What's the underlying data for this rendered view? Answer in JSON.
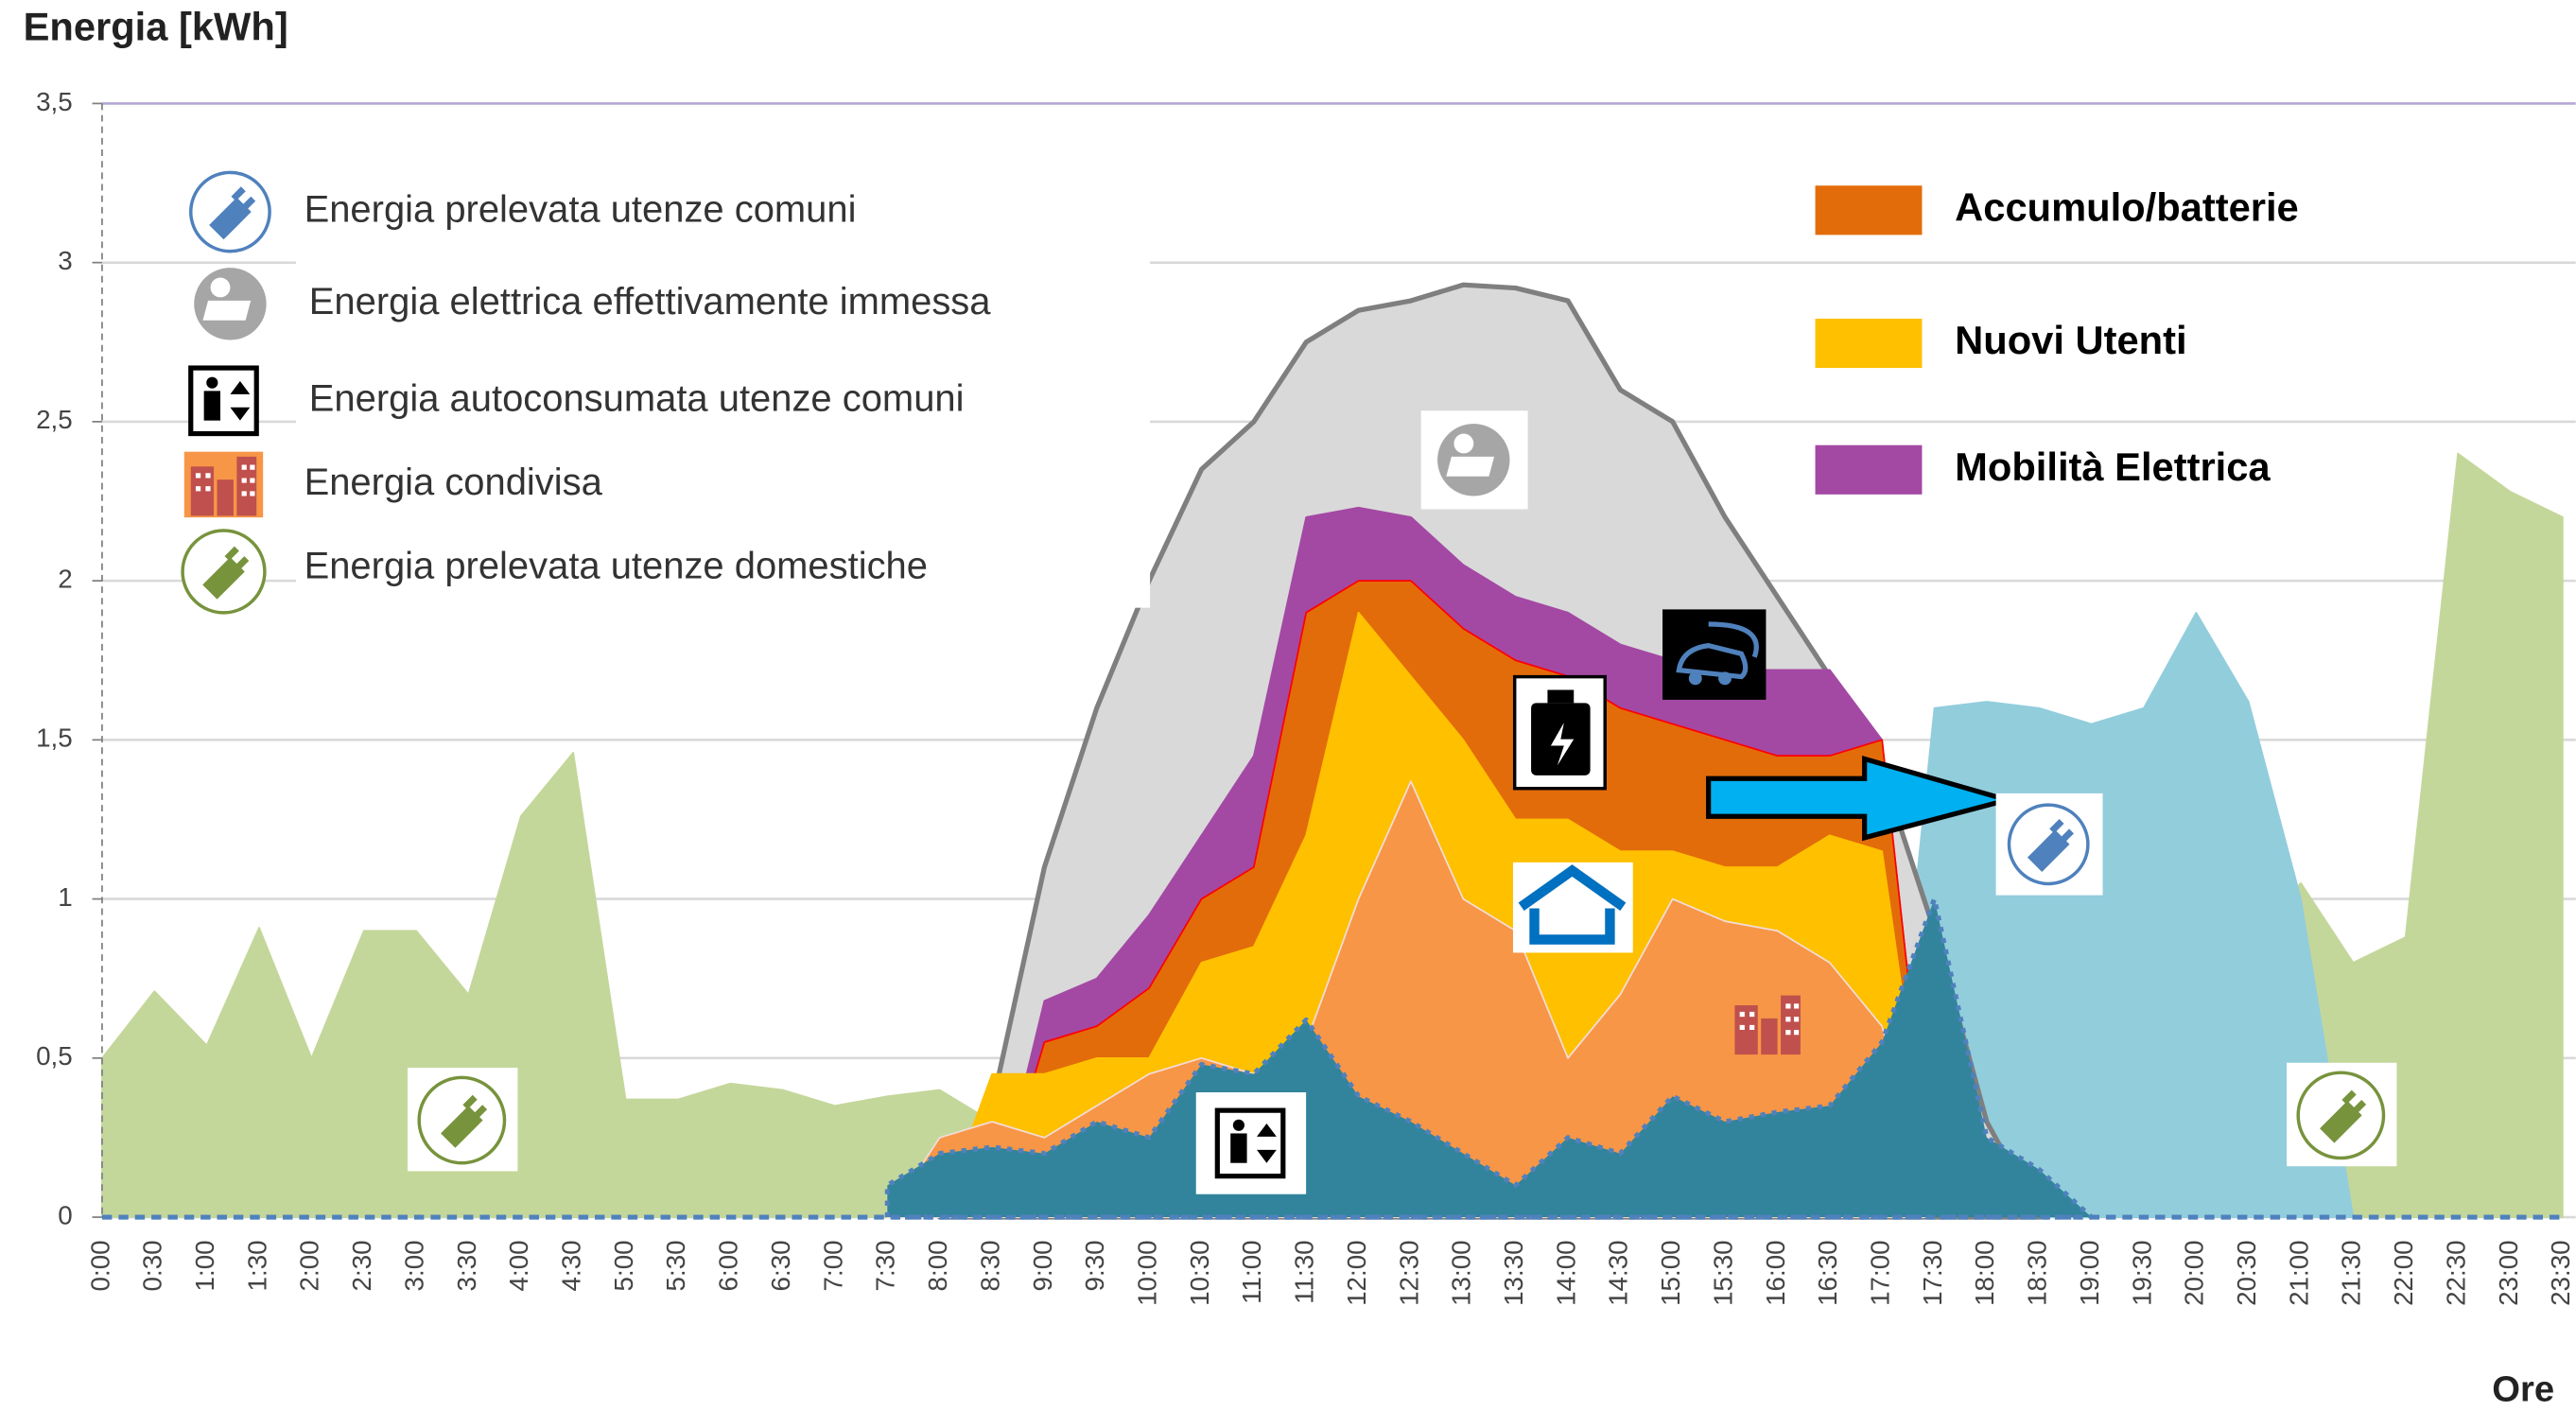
{
  "chart_data": {
    "type": "area",
    "title": "Energia [kWh]",
    "x_label": "Ore",
    "categories": [
      "0:00",
      "0:30",
      "1:00",
      "1:30",
      "2:00",
      "2:30",
      "3:00",
      "3:30",
      "4:00",
      "4:30",
      "5:00",
      "5:30",
      "6:00",
      "6:30",
      "7:00",
      "7:30",
      "8:00",
      "8:30",
      "9:00",
      "9:30",
      "10:00",
      "10:30",
      "11:00",
      "11:30",
      "12:00",
      "12:30",
      "13:00",
      "13:30",
      "14:00",
      "14:30",
      "15:00",
      "15:30",
      "16:00",
      "16:30",
      "17:00",
      "17:30",
      "18:00",
      "18:30",
      "19:00",
      "19:30",
      "20:00",
      "20:30",
      "21:00",
      "21:30",
      "22:00",
      "22:30",
      "23:00",
      "23:30"
    ],
    "ylim": [
      0,
      3.5
    ],
    "yticks": [
      0,
      {
        "value": 0.5,
        "label": "0,5"
      },
      1,
      {
        "value": 1.5,
        "label": "1,5"
      },
      2,
      {
        "value": 2.5,
        "label": "2,5"
      },
      3,
      {
        "value": 3.5,
        "label": "3,5"
      }
    ],
    "grid": true,
    "series": [
      {
        "name": "Energia prelevata utenze comuni",
        "color": "#92cddc",
        "values": [
          null,
          null,
          null,
          null,
          null,
          null,
          null,
          null,
          null,
          null,
          null,
          null,
          null,
          null,
          null,
          null,
          null,
          null,
          null,
          null,
          null,
          null,
          null,
          null,
          null,
          null,
          null,
          null,
          null,
          null,
          null,
          null,
          null,
          null,
          0,
          1.6,
          1.62,
          1.6,
          1.55,
          1.6,
          1.9,
          1.62,
          1.0,
          0,
          null,
          null,
          null,
          null
        ]
      },
      {
        "name": "Energia elettrica effettivamente immessa",
        "color": "#d9d9d9",
        "values": [
          null,
          null,
          null,
          null,
          null,
          null,
          null,
          null,
          null,
          null,
          null,
          null,
          null,
          null,
          null,
          null,
          0,
          0.35,
          1.1,
          1.6,
          2.0,
          2.35,
          2.5,
          2.75,
          2.85,
          2.88,
          2.93,
          2.92,
          2.88,
          2.6,
          2.5,
          2.2,
          1.95,
          1.7,
          1.4,
          0.9,
          0.3,
          0,
          null,
          null,
          null,
          null,
          null,
          null,
          null,
          null,
          null,
          null
        ]
      },
      {
        "name": "Energia autoconsumata utenze comuni",
        "color": "#31849b",
        "values": [
          null,
          null,
          null,
          null,
          null,
          null,
          null,
          null,
          null,
          null,
          null,
          null,
          null,
          null,
          null,
          0.1,
          0.2,
          0.22,
          0.2,
          0.3,
          0.25,
          0.48,
          0.45,
          0.62,
          0.38,
          0.3,
          0.2,
          0.1,
          0.25,
          0.2,
          0.38,
          0.3,
          0.33,
          0.35,
          0.55,
          1.0,
          0.25,
          0.15,
          0,
          null,
          null,
          null,
          null,
          null,
          null,
          null,
          null,
          null
        ]
      },
      {
        "name": "Energia condivisa",
        "color": "#f79646",
        "values": [
          null,
          null,
          null,
          null,
          null,
          null,
          null,
          null,
          null,
          null,
          null,
          null,
          null,
          null,
          null,
          0,
          0.25,
          0.3,
          0.25,
          0.35,
          0.45,
          0.5,
          0.45,
          0.55,
          1.0,
          1.37,
          1.0,
          0.9,
          0.5,
          0.7,
          1.0,
          0.93,
          0.9,
          0.8,
          0.6,
          0,
          null,
          null,
          null,
          null,
          null,
          null,
          null,
          null,
          null,
          null,
          null,
          null
        ]
      },
      {
        "name": "Energia prelevata utenze domestiche",
        "color": "#c4d79b",
        "values": [
          0.5,
          0.71,
          0.54,
          0.91,
          0.5,
          0.9,
          0.9,
          0.7,
          1.26,
          1.46,
          0.37,
          0.37,
          0.42,
          0.4,
          0.35,
          0.38,
          0.4,
          0.3,
          0.25,
          0.25,
          0.25,
          0.25,
          0.25,
          0.25,
          0.25,
          0.25,
          0.25,
          0.25,
          0.25,
          0.25,
          0.25,
          0.25,
          0.25,
          0.25,
          0.25,
          0.25,
          0.25,
          0.25,
          0.82,
          0.88,
          1.15,
          0.87,
          1.05,
          0.8,
          0.88,
          2.4,
          2.28,
          2.2
        ]
      },
      {
        "name": "Accumulo/batterie",
        "color": "#e36c0a",
        "values": [
          null,
          null,
          null,
          null,
          null,
          null,
          null,
          null,
          null,
          null,
          null,
          null,
          null,
          null,
          null,
          null,
          null,
          0,
          0.55,
          0.6,
          0.72,
          1.0,
          1.1,
          1.9,
          2.0,
          2.0,
          1.85,
          1.75,
          1.7,
          1.6,
          1.55,
          1.5,
          1.45,
          1.45,
          1.5,
          0,
          null,
          null,
          null,
          null,
          null,
          null,
          null,
          null,
          null,
          null,
          null,
          null
        ]
      },
      {
        "name": "Nuovi Utenti",
        "color": "#ffc000",
        "values": [
          null,
          null,
          null,
          null,
          null,
          null,
          null,
          null,
          null,
          null,
          null,
          null,
          null,
          null,
          null,
          null,
          0,
          0.45,
          0.45,
          0.5,
          0.5,
          0.8,
          0.85,
          1.2,
          1.9,
          1.7,
          1.5,
          1.25,
          1.25,
          1.15,
          1.15,
          1.1,
          1.1,
          1.2,
          1.15,
          0,
          null,
          null,
          null,
          null,
          null,
          null,
          null,
          null,
          null,
          null,
          null,
          null
        ]
      },
      {
        "name": "Mobilità Elettrica",
        "color": "#a349a4",
        "values": [
          null,
          null,
          null,
          null,
          null,
          null,
          null,
          null,
          null,
          null,
          null,
          null,
          null,
          null,
          null,
          null,
          null,
          0,
          0.68,
          0.75,
          0.95,
          1.2,
          1.45,
          2.2,
          2.23,
          2.2,
          2.05,
          1.95,
          1.9,
          1.8,
          1.75,
          1.72,
          1.72,
          1.72,
          1.5,
          0,
          null,
          null,
          null,
          null,
          null,
          null,
          null,
          null,
          null,
          null,
          null,
          null
        ]
      }
    ]
  }
}
